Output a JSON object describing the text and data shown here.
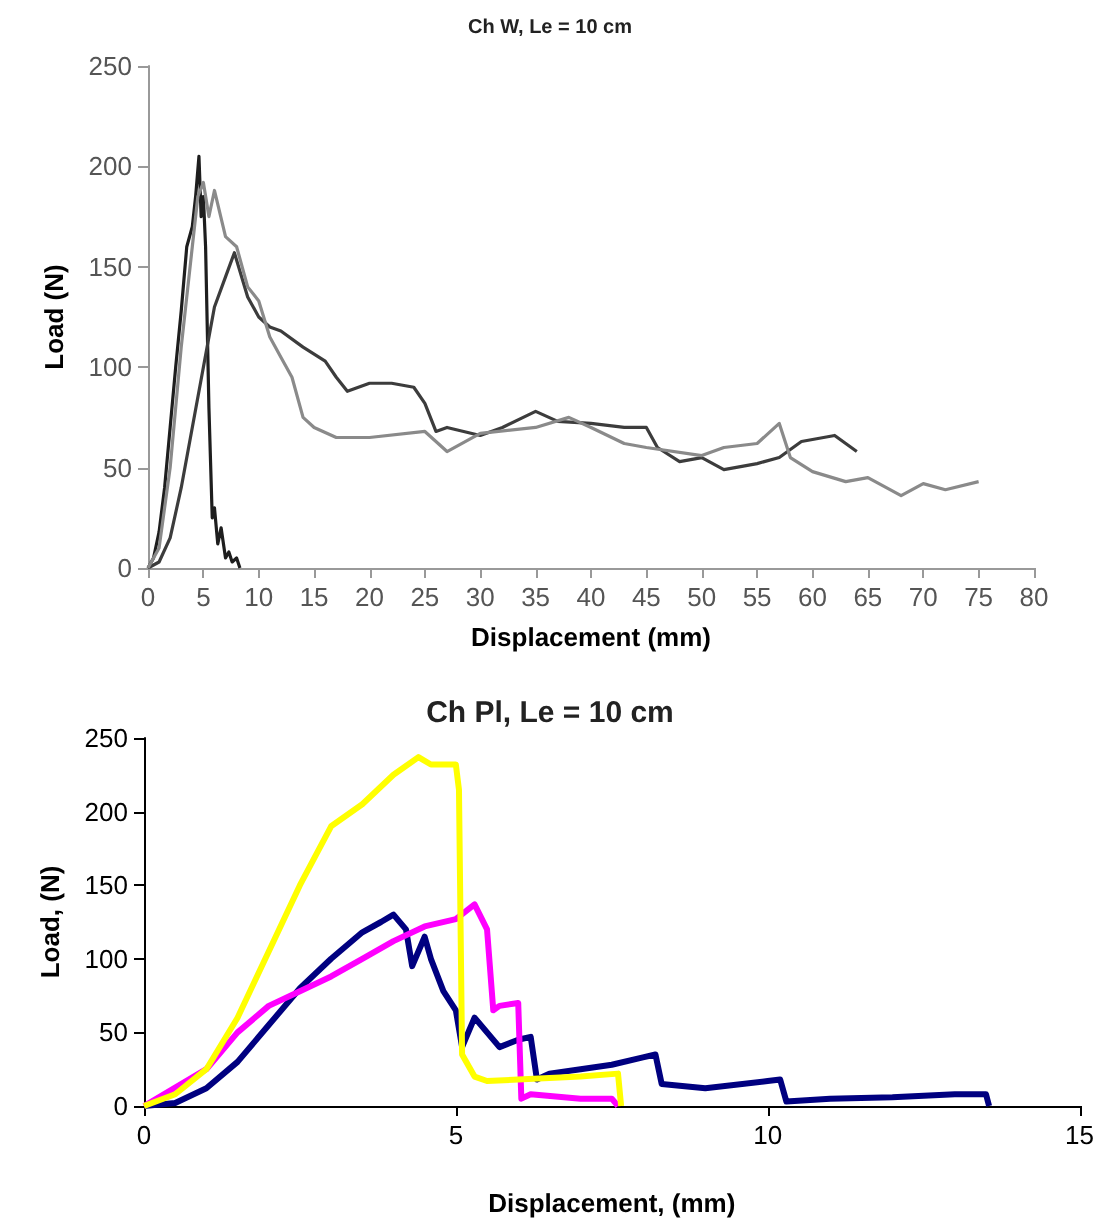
{
  "chart_data": [
    {
      "type": "line",
      "title": "Ch W, Le = 10 cm",
      "xlabel": "Displacement (mm)",
      "ylabel": "Load (N)",
      "xlim": [
        0,
        80
      ],
      "xticks": [
        0,
        5,
        10,
        15,
        20,
        25,
        30,
        35,
        40,
        45,
        50,
        55,
        60,
        65,
        70,
        75,
        80
      ],
      "ylim": [
        0,
        250
      ],
      "yticks": [
        0,
        50,
        100,
        150,
        200,
        250
      ],
      "series": [
        {
          "color": "#1e1e1e",
          "x": [
            0,
            0.5,
            1,
            1.5,
            2,
            2.5,
            3,
            3.5,
            4,
            4.3,
            4.6,
            4.8,
            5,
            5.2,
            5.5,
            5.8,
            6,
            6.3,
            6.6,
            7,
            7.3,
            7.6,
            8,
            8.3
          ],
          "values": [
            0,
            5,
            18,
            40,
            70,
            100,
            128,
            160,
            170,
            185,
            205,
            175,
            185,
            160,
            80,
            25,
            30,
            12,
            20,
            5,
            8,
            3,
            5,
            0
          ]
        },
        {
          "color": "#3c3c3c",
          "x": [
            0,
            1,
            2,
            3,
            4,
            5,
            6,
            7,
            7.8,
            9,
            10,
            11,
            12,
            14,
            16,
            17,
            18,
            20,
            22,
            24,
            25,
            26,
            27,
            30,
            32,
            35,
            37,
            40,
            43,
            45,
            46,
            48,
            50,
            52,
            55,
            57,
            59,
            60,
            62,
            64
          ],
          "values": [
            0,
            3,
            15,
            40,
            70,
            100,
            130,
            145,
            157,
            135,
            125,
            120,
            118,
            110,
            103,
            95,
            88,
            92,
            92,
            90,
            82,
            68,
            70,
            66,
            70,
            78,
            73,
            72,
            70,
            70,
            60,
            53,
            55,
            49,
            52,
            55,
            63,
            64,
            66,
            58
          ]
        },
        {
          "color": "#8a8a8a",
          "x": [
            0,
            1,
            2,
            3,
            4,
            4.5,
            5,
            5.5,
            6,
            7,
            8,
            9,
            10,
            11,
            12,
            13,
            14,
            15,
            17,
            20,
            25,
            27,
            30,
            35,
            38,
            40,
            43,
            45,
            50,
            52,
            55,
            57,
            58,
            60,
            63,
            65,
            68,
            70,
            72,
            75
          ],
          "values": [
            0,
            10,
            50,
            110,
            160,
            185,
            192,
            175,
            188,
            165,
            160,
            140,
            133,
            115,
            105,
            95,
            75,
            70,
            65,
            65,
            68,
            58,
            67,
            70,
            75,
            70,
            62,
            60,
            56,
            60,
            62,
            72,
            55,
            48,
            43,
            45,
            36,
            42,
            39,
            43
          ]
        }
      ]
    },
    {
      "type": "line",
      "title": "Ch Pl, Le = 10 cm",
      "xlabel": "Displacement, (mm)",
      "ylabel": "Load, (N)",
      "xlim": [
        0,
        15
      ],
      "xticks": [
        0,
        5,
        10,
        15
      ],
      "ylim": [
        0,
        250
      ],
      "yticks": [
        0,
        50,
        100,
        150,
        200,
        250
      ],
      "series": [
        {
          "color": "#000080",
          "x": [
            0,
            0.5,
            1,
            1.5,
            2,
            2.5,
            3,
            3.5,
            3.8,
            4,
            4.2,
            4.3,
            4.5,
            4.6,
            4.8,
            5,
            5.1,
            5.3,
            5.5,
            5.7,
            6,
            6.2,
            6.3,
            6.5,
            7,
            7.5,
            8,
            8.2,
            8.3,
            9,
            10,
            10.2,
            10.3,
            11,
            12,
            13,
            13.5,
            13.55
          ],
          "values": [
            0,
            2,
            12,
            30,
            55,
            80,
            100,
            118,
            125,
            130,
            120,
            95,
            115,
            100,
            78,
            65,
            40,
            60,
            50,
            40,
            45,
            47,
            18,
            22,
            25,
            28,
            33,
            35,
            15,
            12,
            17,
            18,
            3,
            5,
            6,
            8,
            8,
            0
          ]
        },
        {
          "color": "#ff00ff",
          "x": [
            0,
            1,
            1.5,
            2,
            2.5,
            3,
            3.5,
            4,
            4.5,
            5,
            5.3,
            5.5,
            5.6,
            5.7,
            6,
            6.05,
            6.2,
            7,
            7.5,
            7.6
          ],
          "values": [
            0,
            25,
            50,
            68,
            78,
            88,
            100,
            112,
            122,
            127,
            137,
            120,
            65,
            68,
            70,
            5,
            8,
            5,
            5,
            0
          ]
        },
        {
          "color": "#ffff00",
          "x": [
            0,
            0.5,
            1,
            1.5,
            2,
            2.5,
            3,
            3.5,
            4,
            4.4,
            4.6,
            5,
            5.05,
            5.1,
            5.3,
            5.5,
            6,
            7,
            7.6,
            7.65
          ],
          "values": [
            0,
            8,
            25,
            60,
            105,
            150,
            190,
            205,
            225,
            237,
            232,
            232,
            215,
            35,
            20,
            17,
            18,
            20,
            22,
            0
          ]
        }
      ]
    }
  ]
}
